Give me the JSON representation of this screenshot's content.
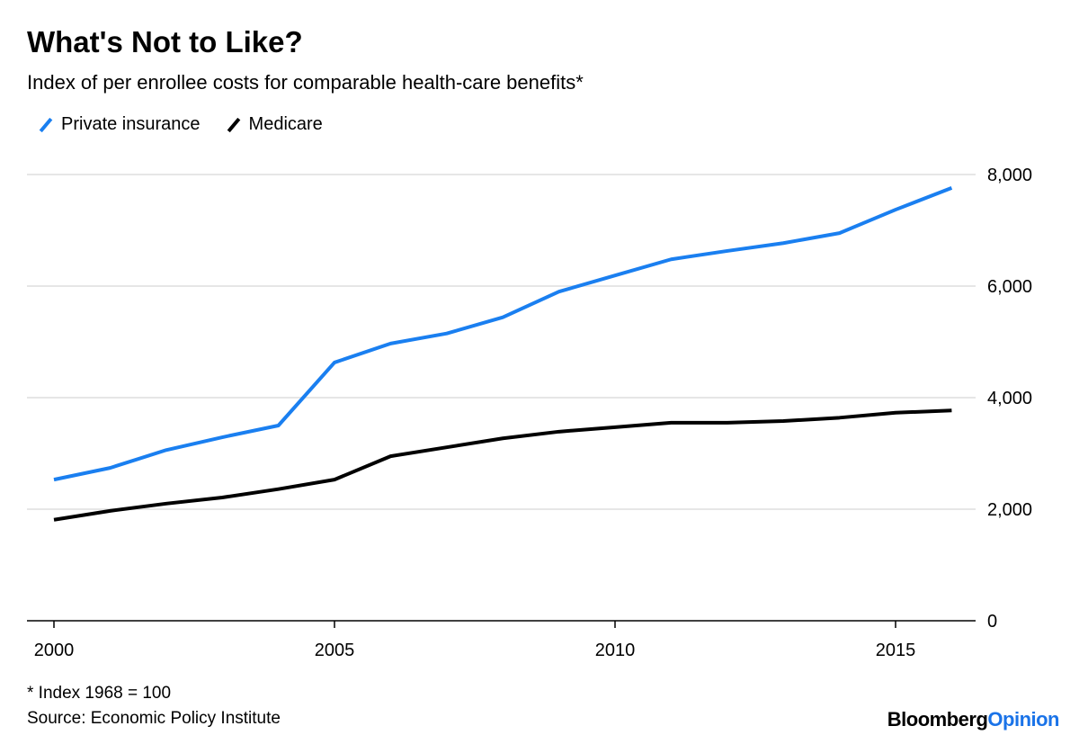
{
  "chart_data": {
    "type": "line",
    "title": "What's Not to Like?",
    "subtitle": "Index of per enrollee costs for comparable health-care benefits*",
    "x": [
      2000,
      2001,
      2002,
      2003,
      2004,
      2005,
      2006,
      2007,
      2008,
      2009,
      2010,
      2011,
      2012,
      2013,
      2014,
      2015,
      2016
    ],
    "series": [
      {
        "name": "Private insurance",
        "color": "#1a7ff0",
        "values": [
          2530,
          2740,
          3060,
          3290,
          3500,
          4630,
          4970,
          5150,
          5440,
          5900,
          6190,
          6480,
          6630,
          6770,
          6950,
          7370,
          7760
        ]
      },
      {
        "name": "Medicare",
        "color": "#000000",
        "values": [
          1810,
          1970,
          2100,
          2210,
          2360,
          2530,
          2950,
          3110,
          3270,
          3390,
          3470,
          3550,
          3550,
          3580,
          3640,
          3730,
          3770
        ]
      }
    ],
    "xlim": [
      1999.1,
      2016.8
    ],
    "ylim": [
      0,
      8000
    ],
    "x_ticks": [
      2000,
      2005,
      2010,
      2015
    ],
    "x_tick_labels": [
      "2000",
      "2005",
      "2010",
      "2015"
    ],
    "y_ticks": [
      0,
      2000,
      4000,
      6000,
      8000
    ],
    "y_tick_labels": [
      "0",
      "2,000",
      "4,000",
      "6,000",
      "8,000"
    ],
    "y_axis_side": "right",
    "grid": true,
    "legend_placement": "top-left",
    "footnote": "* Index 1968 = 100",
    "source": "Source: Economic Policy Institute"
  },
  "branding": {
    "part1": "Bloomberg",
    "part2": "Opinion"
  }
}
